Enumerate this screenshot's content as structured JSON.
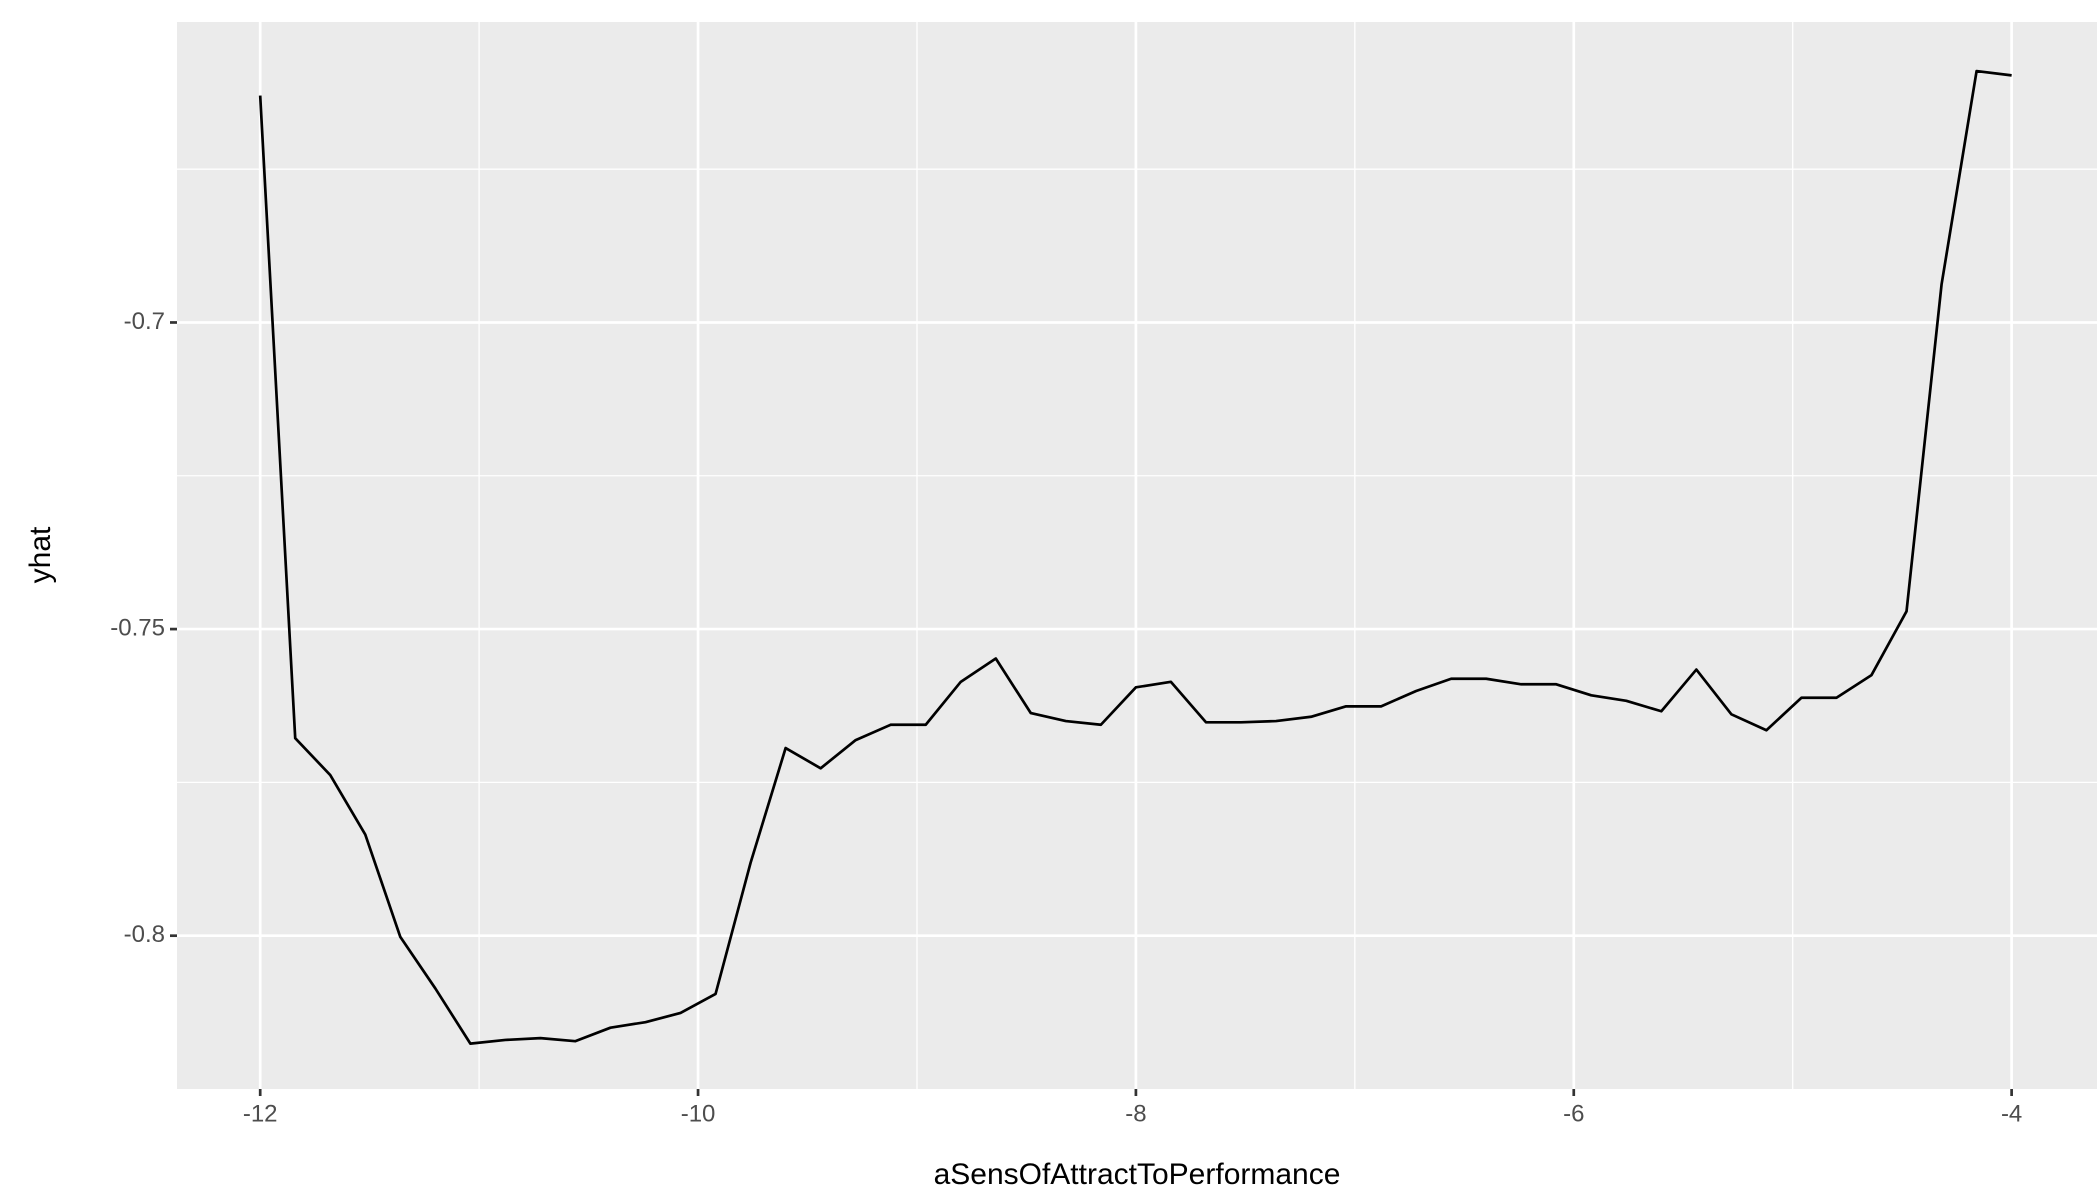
{
  "chart_data": {
    "type": "line",
    "x_label": "aSensOfAttractToPerformance",
    "y_label": "yhat",
    "x": [
      -12,
      -11.84,
      -11.68,
      -11.52,
      -11.36,
      -11.2,
      -11.04,
      -10.88,
      -10.72,
      -10.56,
      -10.4,
      -10.24,
      -10.08,
      -9.92,
      -9.76,
      -9.6,
      -9.44,
      -9.28,
      -9.12,
      -8.96,
      -8.8,
      -8.64,
      -8.48,
      -8.32,
      -8.16,
      -8,
      -7.84,
      -7.68,
      -7.52,
      -7.36,
      -7.2,
      -7.04,
      -6.88,
      -6.72,
      -6.56,
      -6.4,
      -6.24,
      -6.08,
      -5.92,
      -5.76,
      -5.6,
      -5.44,
      -5.28,
      -5.12,
      -4.96,
      -4.8,
      -4.64,
      -4.48,
      -4.32,
      -4.16,
      -4
    ],
    "series": [
      {
        "color": "#000000",
        "values": [
          -0.663,
          -0.7678,
          -0.7738,
          -0.7835,
          -0.8002,
          -0.8086,
          -0.8176,
          -0.817,
          -0.8167,
          -0.8172,
          -0.815,
          -0.8141,
          -0.8126,
          -0.8095,
          -0.7881,
          -0.7694,
          -0.7727,
          -0.7681,
          -0.7656,
          -0.7656,
          -0.7586,
          -0.7548,
          -0.7637,
          -0.765,
          -0.7656,
          -0.7595,
          -0.7586,
          -0.7652,
          -0.7652,
          -0.765,
          -0.7643,
          -0.7626,
          -0.7626,
          -0.7601,
          -0.7581,
          -0.7581,
          -0.759,
          -0.759,
          -0.7608,
          -0.7617,
          -0.7634,
          -0.7566,
          -0.7639,
          -0.7665,
          -0.7612,
          -0.7612,
          -0.7575,
          -0.7471,
          -0.6938,
          -0.659,
          -0.6597
        ]
      }
    ],
    "xlim": [
      -12.38,
      -3.61
    ],
    "ylim": [
      -0.825,
      -0.651
    ],
    "xticks": [
      -12,
      -10,
      -8,
      -6,
      -4
    ],
    "yticks": [
      -0.8,
      -0.75,
      -0.7
    ],
    "x_minor_grid": [
      -11,
      -9,
      -7,
      -5
    ],
    "y_minor_grid": [
      -0.775,
      -0.725,
      -0.675
    ],
    "grid": true,
    "panel_color": "#ebebeb"
  }
}
